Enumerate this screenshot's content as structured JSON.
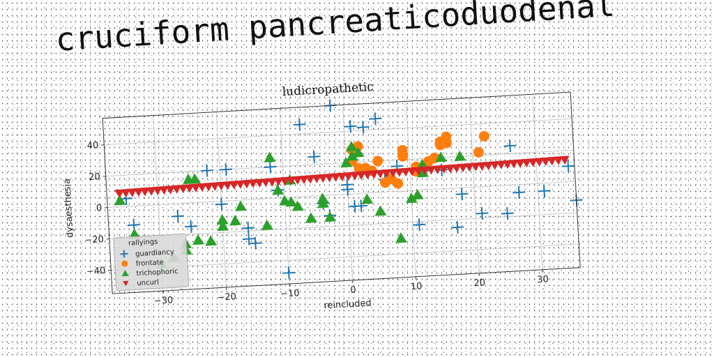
{
  "banner": {
    "text": "cruciform pancreaticoduodenal"
  },
  "chart_data": {
    "type": "scatter",
    "title": "ludicropathetic",
    "xlabel": "reincluded",
    "ylabel": "dysaesthesia",
    "xlim": [
      -38,
      36
    ],
    "ylim": [
      -55,
      57
    ],
    "xticks": [
      -30,
      -20,
      -10,
      0,
      10,
      20,
      30
    ],
    "yticks": [
      -40,
      -20,
      0,
      20,
      40
    ],
    "xtick_labels": [
      "−30",
      "−20",
      "−10",
      "0",
      "10",
      "20",
      "30"
    ],
    "ytick_labels": [
      "−40",
      "−20",
      "0",
      "20",
      "40"
    ],
    "grid": true,
    "legend": {
      "title": "rallyings",
      "placement": "lower-left"
    },
    "series": [
      {
        "name": "guardiancy",
        "marker": "plus",
        "color": "#1f77b4",
        "points": [
          [
            -35,
            5
          ],
          [
            -34,
            -12
          ],
          [
            -27,
            -8
          ],
          [
            -25,
            -15
          ],
          [
            -22,
            20
          ],
          [
            -20,
            -2
          ],
          [
            -19,
            20
          ],
          [
            -16,
            -18
          ],
          [
            -15,
            -28
          ],
          [
            -16,
            -25
          ],
          [
            -12,
            20
          ],
          [
            -11,
            5
          ],
          [
            -10,
            -48
          ],
          [
            -7,
            46
          ],
          [
            -5,
            25
          ],
          [
            -4,
            -5
          ],
          [
            -3,
            -13
          ],
          [
            -2,
            57
          ],
          [
            0,
            6
          ],
          [
            0,
            3
          ],
          [
            1,
            43
          ],
          [
            1,
            -8
          ],
          [
            2,
            -8
          ],
          [
            3,
            42
          ],
          [
            5,
            47
          ],
          [
            6,
            8
          ],
          [
            8,
            16
          ],
          [
            11,
            -22
          ],
          [
            12,
            12
          ],
          [
            15,
            12
          ],
          [
            17,
            -25
          ],
          [
            18,
            -4
          ],
          [
            21,
            -17
          ],
          [
            25,
            -18
          ],
          [
            26,
            25
          ],
          [
            27,
            -5
          ],
          [
            31,
            -5
          ],
          [
            35,
            10
          ],
          [
            36,
            -12
          ]
        ]
      },
      {
        "name": "frontate",
        "marker": "circle",
        "color": "#ff7f0e",
        "points": [
          [
            1,
            28
          ],
          [
            1,
            21
          ],
          [
            2,
            16
          ],
          [
            2,
            30
          ],
          [
            3,
            16
          ],
          [
            4,
            14
          ],
          [
            5,
            20
          ],
          [
            6,
            6
          ],
          [
            7,
            8
          ],
          [
            8,
            5
          ],
          [
            9,
            22
          ],
          [
            9,
            26
          ],
          [
            11,
            12
          ],
          [
            11,
            15
          ],
          [
            13,
            18
          ],
          [
            14,
            20
          ],
          [
            15,
            28
          ],
          [
            15,
            30
          ],
          [
            16,
            33
          ],
          [
            16,
            29
          ],
          [
            21,
            22
          ],
          [
            22,
            32
          ]
        ]
      },
      {
        "name": "trichophoric",
        "marker": "triangle-up",
        "color": "#2ca02c",
        "points": [
          [
            -36,
            4
          ],
          [
            -34,
            -18
          ],
          [
            -30,
            -38
          ],
          [
            -28,
            -34
          ],
          [
            -26,
            -30
          ],
          [
            -26,
            -26
          ],
          [
            -25,
            15
          ],
          [
            -24,
            15
          ],
          [
            -24,
            -24
          ],
          [
            -22,
            -25
          ],
          [
            -20,
            -16
          ],
          [
            -20,
            -12
          ],
          [
            -18,
            -13
          ],
          [
            -17,
            -4
          ],
          [
            -13,
            -17
          ],
          [
            -12,
            26
          ],
          [
            -11,
            5
          ],
          [
            -10,
            -2
          ],
          [
            -9,
            -3
          ],
          [
            -9,
            11
          ],
          [
            -8,
            -6
          ],
          [
            -6,
            -14
          ],
          [
            -4,
            -5
          ],
          [
            -4,
            -2
          ],
          [
            -3,
            -14
          ],
          [
            0,
            20
          ],
          [
            1,
            24
          ],
          [
            1,
            30
          ],
          [
            2,
            26
          ],
          [
            3,
            -4
          ],
          [
            5,
            -12
          ],
          [
            8,
            -30
          ],
          [
            10,
            -5
          ],
          [
            11,
            -3
          ],
          [
            12,
            16
          ],
          [
            12,
            11
          ],
          [
            15,
            20
          ],
          [
            18,
            20
          ]
        ]
      },
      {
        "name": "uncurl",
        "marker": "triangle-down",
        "color": "#d62728",
        "x_range": [
          -36,
          34.5
        ],
        "count": 71,
        "y_start": 8.7,
        "y_end": 14.2
      }
    ]
  }
}
